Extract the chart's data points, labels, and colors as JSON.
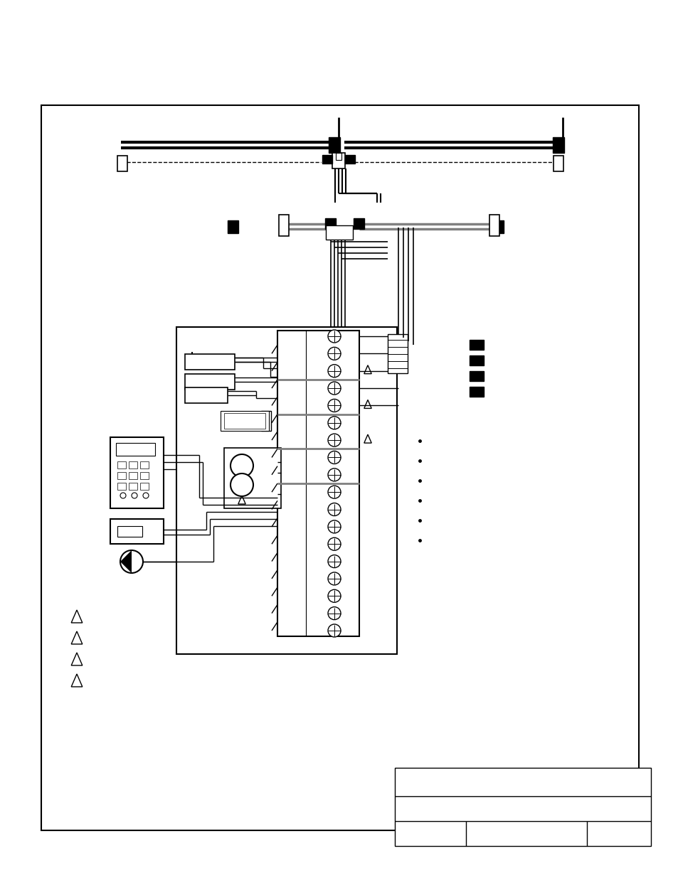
{
  "bg_color": "#ffffff",
  "lc": "#000000",
  "gray": "#aaaaaa"
}
